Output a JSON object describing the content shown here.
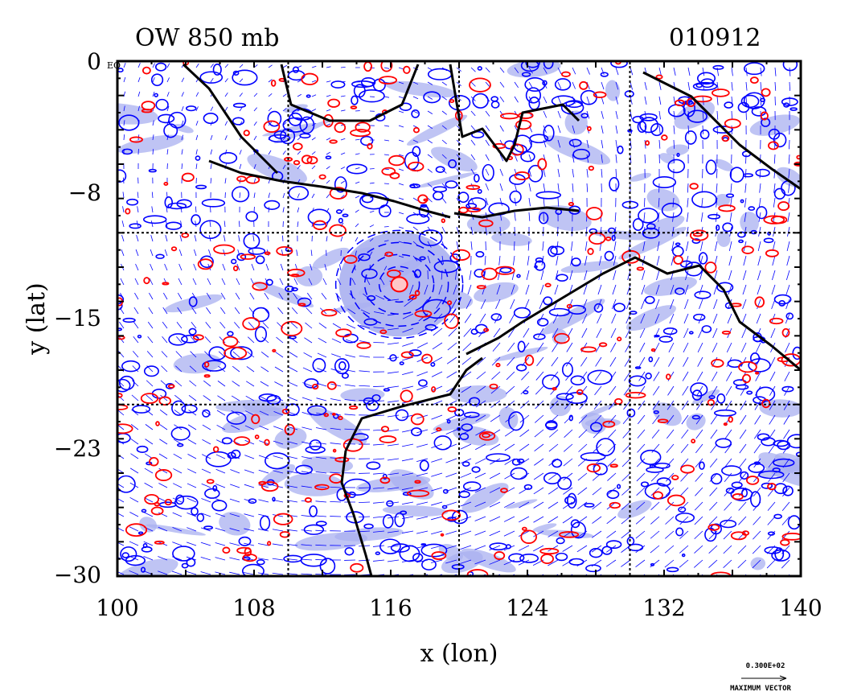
{
  "title_left": "OW 850 mb",
  "title_right": "010912",
  "x_axis": {
    "label": "x (lon)",
    "ticks": [
      "100",
      "108",
      "116",
      "124",
      "132",
      "140"
    ],
    "range": [
      100,
      140
    ]
  },
  "y_axis": {
    "label": "y (lat)",
    "ticks": [
      "0",
      "−8",
      "−15",
      "−23",
      "−30"
    ],
    "range": [
      -30,
      0
    ],
    "eq_label": "EQ"
  },
  "gridlines": {
    "lon": [
      110,
      120,
      130
    ],
    "lat": [
      -10,
      -20
    ]
  },
  "vector_key": {
    "value": "0.300E+02",
    "caption": "MAXIMUM VECTOR"
  },
  "colors": {
    "positive_contour": "#ff0000",
    "negative_contour": "#0000ff",
    "fill": "#aab0f0",
    "coastline": "#000000",
    "vectors": "#0000ff"
  }
}
